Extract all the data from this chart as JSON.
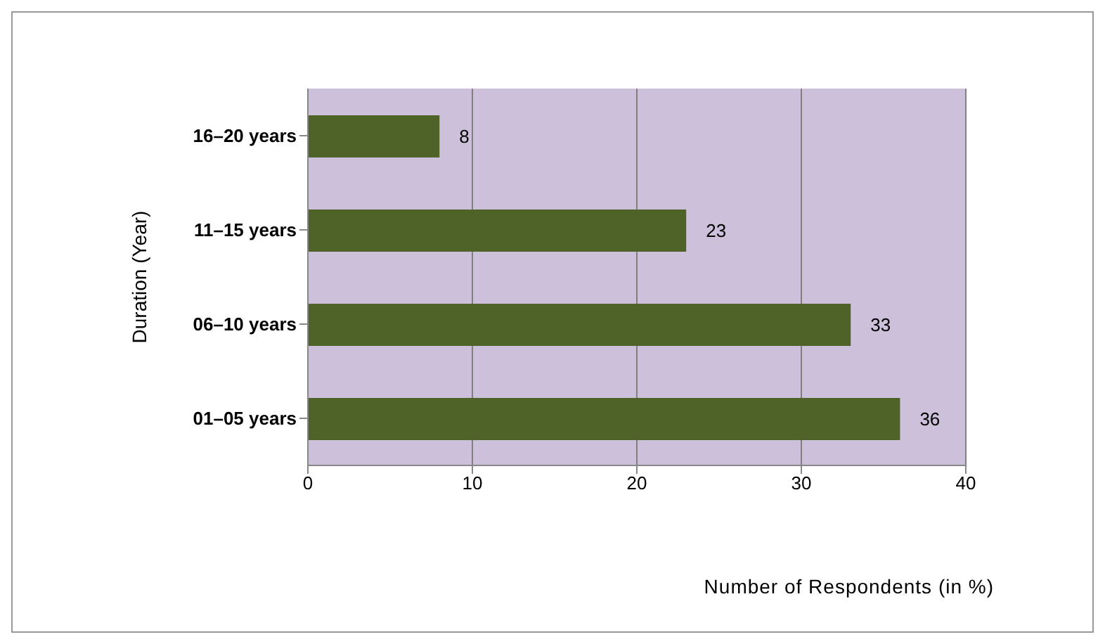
{
  "chart_data": {
    "type": "bar",
    "orientation": "horizontal",
    "categories": [
      "16–20 years",
      "11–15 years",
      "06–10 years",
      "01–05 years"
    ],
    "values": [
      8,
      23,
      33,
      36
    ],
    "color": "#4f6228",
    "data_labels": true,
    "xlim": [
      0,
      40
    ],
    "xticks": [
      0,
      10,
      20,
      30,
      40
    ],
    "grid": "x",
    "legend": false,
    "xlabel": "Number of Respondents (in %)",
    "ylabel": "Duration (Year)"
  }
}
